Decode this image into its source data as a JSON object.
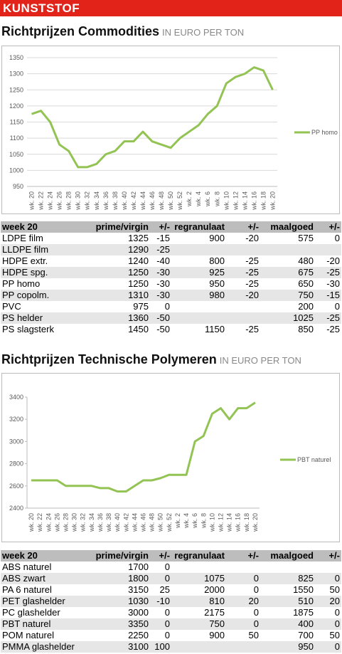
{
  "header": "KUNSTSTOF",
  "chart_data": [
    {
      "type": "line",
      "title": "Richtprijzen Commodities",
      "subtitle": "IN EURO PER TON",
      "categories": [
        "wk. 20",
        "wk. 22",
        "wk. 24",
        "wk. 26",
        "wk. 28",
        "wk. 30",
        "wk. 32",
        "wk. 34",
        "wk. 36",
        "wk. 38",
        "wk. 40",
        "wk. 42",
        "wk. 44",
        "wk. 46",
        "wk. 48",
        "wk. 50",
        "wk. 52",
        "wk. 2",
        "wk. 4",
        "wk. 6",
        "wk. 8",
        "wk. 10",
        "wk. 12",
        "wk. 14",
        "wk. 16",
        "wk. 18",
        "wk. 20"
      ],
      "series": [
        {
          "name": "PP homo",
          "color": "#92c353",
          "values": [
            1175,
            1185,
            1150,
            1080,
            1060,
            1010,
            1010,
            1020,
            1050,
            1060,
            1090,
            1090,
            1120,
            1090,
            1080,
            1070,
            1100,
            1120,
            1140,
            1175,
            1200,
            1270,
            1290,
            1300,
            1320,
            1310,
            1250
          ]
        }
      ],
      "ylim": [
        950,
        1350
      ],
      "yticks": [
        950,
        1000,
        1050,
        1100,
        1150,
        1200,
        1250,
        1300,
        1350
      ],
      "grid": true,
      "legend": "right"
    },
    {
      "type": "line",
      "title": "Richtprijzen Technische Polymeren",
      "subtitle": "IN EURO PER TON",
      "categories": [
        "wk. 20",
        "wk. 22",
        "wk. 24",
        "wk. 26",
        "wk. 28",
        "wk. 30",
        "wk. 32",
        "wk. 34",
        "wk. 36",
        "wk. 38",
        "wk. 40",
        "wk. 42",
        "wk. 44",
        "wk. 46",
        "wk. 48",
        "wk. 50",
        "wk. 52",
        "wk. 2",
        "wk. 4",
        "wk. 6",
        "wk. 8",
        "wk. 10",
        "wk. 12",
        "wk. 14",
        "wk. 16",
        "wk. 18",
        "wk. 20"
      ],
      "series": [
        {
          "name": "PBT naturel",
          "color": "#92c353",
          "values": [
            2650,
            2650,
            2650,
            2650,
            2600,
            2600,
            2600,
            2600,
            2580,
            2580,
            2550,
            2550,
            2600,
            2650,
            2650,
            2670,
            2700,
            2700,
            2700,
            3000,
            3050,
            3250,
            3300,
            3200,
            3300,
            3300,
            3350
          ]
        }
      ],
      "ylim": [
        2400,
        3400
      ],
      "yticks": [
        2400,
        2600,
        2800,
        3000,
        3200,
        3400
      ],
      "grid": false,
      "legend": "right"
    }
  ],
  "tables": [
    {
      "header": [
        "week 20",
        "prime/virgin",
        "+/-",
        "regranulaat",
        "+/-",
        "maalgoed",
        "+/-"
      ],
      "rows": [
        [
          "LDPE film",
          1325,
          -15,
          900,
          -20,
          575,
          0
        ],
        [
          "LLDPE film",
          1290,
          -25,
          null,
          null,
          null,
          null
        ],
        [
          "HDPE extr.",
          1240,
          -40,
          800,
          -25,
          480,
          -20
        ],
        [
          "HDPE spg.",
          1250,
          -30,
          925,
          -25,
          675,
          -25
        ],
        [
          "PP homo",
          1250,
          -30,
          950,
          -25,
          650,
          -30
        ],
        [
          "PP copolm.",
          1310,
          -30,
          980,
          -20,
          750,
          -15
        ],
        [
          "PVC",
          975,
          0,
          null,
          null,
          200,
          0
        ],
        [
          "PS helder",
          1360,
          -50,
          null,
          null,
          1025,
          -25
        ],
        [
          "PS slagsterk",
          1450,
          -50,
          1150,
          -25,
          850,
          -25
        ]
      ]
    },
    {
      "header": [
        "week 20",
        "prime/virgin",
        "+/-",
        "regranulaat",
        "+/-",
        "maalgoed",
        "+/-"
      ],
      "rows": [
        [
          "ABS naturel",
          1700,
          0,
          null,
          null,
          null,
          null
        ],
        [
          "ABS zwart",
          1800,
          0,
          1075,
          0,
          825,
          0
        ],
        [
          "PA 6 naturel",
          3150,
          25,
          2000,
          0,
          1550,
          50
        ],
        [
          "PET glashelder",
          1030,
          -10,
          810,
          20,
          510,
          20
        ],
        [
          "PC glashelder",
          3000,
          0,
          2175,
          0,
          1875,
          0
        ],
        [
          "PBT naturel",
          3350,
          0,
          750,
          0,
          400,
          0
        ],
        [
          "POM naturel",
          2250,
          0,
          900,
          50,
          700,
          50
        ],
        [
          "PMMA glashelder",
          3100,
          100,
          null,
          null,
          950,
          0
        ]
      ]
    }
  ]
}
